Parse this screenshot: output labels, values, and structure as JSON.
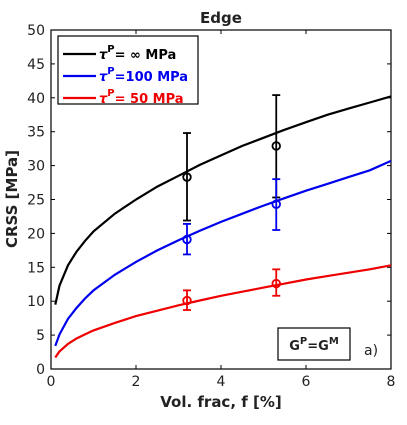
{
  "chart_data": {
    "type": "line",
    "title": "Edge",
    "xlabel": "Vol. frac, f [%]",
    "ylabel": "CRSS [MPa]",
    "xlim": [
      0,
      8
    ],
    "ylim": [
      0,
      50
    ],
    "xticks": [
      0,
      2,
      4,
      6,
      8
    ],
    "yticks": [
      0,
      5,
      10,
      15,
      20,
      25,
      30,
      35,
      40,
      45,
      50
    ],
    "grid": false,
    "legend_position": "top-left",
    "annotation_box": "G^P=G^M",
    "panel_label": "a)",
    "series": [
      {
        "legend": "τ^P=  ∞ MPa",
        "legend_parts": {
          "sym": "τ",
          "sup": "P",
          "rest": "=  ∞ MPa"
        },
        "color": "#000000",
        "curve": {
          "x": [
            0.1,
            0.2,
            0.4,
            0.6,
            0.8,
            1.0,
            1.5,
            2.0,
            2.5,
            3.0,
            3.5,
            4.0,
            4.5,
            5.0,
            5.5,
            6.0,
            6.5,
            7.0,
            7.5,
            8.0
          ],
          "y": [
            9.5,
            12.3,
            15.3,
            17.3,
            18.9,
            20.3,
            22.9,
            25.0,
            26.9,
            28.5,
            30.1,
            31.5,
            32.9,
            34.1,
            35.3,
            36.4,
            37.5,
            38.4,
            39.3,
            40.2
          ]
        },
        "points": [
          {
            "x": 3.2,
            "y": 28.3,
            "ylow": 21.9,
            "yhigh": 34.8
          },
          {
            "x": 5.3,
            "y": 32.9,
            "ylow": 25.3,
            "yhigh": 40.4
          }
        ]
      },
      {
        "legend": "τ^P=100 MPa",
        "legend_parts": {
          "sym": "τ",
          "sup": "P",
          "rest": "=100 MPa"
        },
        "color": "#0000ee",
        "curve": {
          "x": [
            0.1,
            0.2,
            0.4,
            0.6,
            0.8,
            1.0,
            1.5,
            2.0,
            2.5,
            3.0,
            3.5,
            4.0,
            4.5,
            5.0,
            5.5,
            6.0,
            6.5,
            7.0,
            7.5,
            8.0
          ],
          "y": [
            3.4,
            5.1,
            7.4,
            9.0,
            10.4,
            11.6,
            13.9,
            15.8,
            17.5,
            19.0,
            20.4,
            21.7,
            22.9,
            24.1,
            25.2,
            26.3,
            27.3,
            28.3,
            29.3,
            30.7
          ]
        },
        "points": [
          {
            "x": 3.2,
            "y": 19.1,
            "ylow": 16.9,
            "yhigh": 21.4
          },
          {
            "x": 5.3,
            "y": 24.3,
            "ylow": 20.5,
            "yhigh": 28.0
          }
        ]
      },
      {
        "legend": "τ^P=  50 MPa",
        "legend_parts": {
          "sym": "τ",
          "sup": "P",
          "rest": "=  50 MPa"
        },
        "color": "#ee0000",
        "curve": {
          "x": [
            0.1,
            0.2,
            0.4,
            0.6,
            0.8,
            1.0,
            1.5,
            2.0,
            2.5,
            3.0,
            3.5,
            4.0,
            4.5,
            5.0,
            5.5,
            6.0,
            6.5,
            7.0,
            7.5,
            8.0
          ],
          "y": [
            1.7,
            2.6,
            3.7,
            4.5,
            5.1,
            5.7,
            6.8,
            7.8,
            8.6,
            9.4,
            10.1,
            10.8,
            11.4,
            12.0,
            12.6,
            13.2,
            13.7,
            14.2,
            14.7,
            15.3
          ]
        },
        "points": [
          {
            "x": 3.2,
            "y": 10.1,
            "ylow": 8.7,
            "yhigh": 11.6
          },
          {
            "x": 5.3,
            "y": 12.6,
            "ylow": 10.8,
            "yhigh": 14.7
          }
        ]
      }
    ]
  }
}
